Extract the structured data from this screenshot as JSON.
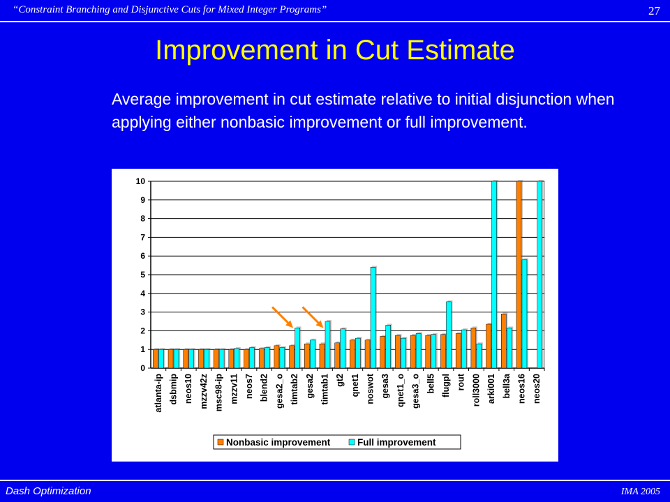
{
  "header": {
    "title": "“Constraint Branching and Disjunctive Cuts for Mixed Integer Programs”",
    "page_number": "27"
  },
  "slide": {
    "title": "Improvement in Cut Estimate",
    "subtitle": "Average improvement in cut estimate relative to initial disjunction when applying either nonbasic improvement or full improvement."
  },
  "footer": {
    "left": "Dash Optimization",
    "right": "IMA 2005"
  },
  "colors": {
    "background": "#0000ee",
    "title": "#ffff00",
    "nonbasic": "#ff8000",
    "full": "#00ffff",
    "arrow": "#ff8000"
  },
  "chart_data": {
    "type": "bar",
    "categories": [
      "atlanta-ip",
      "dsbmip",
      "neos10",
      "mzzv42z",
      "msc98-ip",
      "mzzv11",
      "neos7",
      "blend2",
      "gesa2_o",
      "timtab2",
      "gesa2",
      "timtab1",
      "gt2",
      "qnet1",
      "noswot",
      "gesa3",
      "qnet1_o",
      "gesa3_o",
      "bell5",
      "flugpl",
      "rout",
      "roll3000",
      "arki001",
      "bell3a",
      "neos16",
      "neos20"
    ],
    "series": [
      {
        "name": "Nonbasic improvement",
        "color": "#ff8000",
        "values": [
          1.0,
          1.0,
          1.0,
          1.0,
          1.0,
          1.0,
          1.0,
          1.05,
          1.2,
          1.2,
          1.3,
          1.3,
          1.35,
          1.5,
          1.5,
          1.7,
          1.75,
          1.75,
          1.75,
          1.8,
          1.85,
          2.15,
          2.35,
          2.9,
          10,
          0
        ]
      },
      {
        "name": "Full improvement",
        "color": "#00ffff",
        "values": [
          1.0,
          1.0,
          1.0,
          1.0,
          1.0,
          1.05,
          1.1,
          1.1,
          1.1,
          2.15,
          1.5,
          2.5,
          2.1,
          1.6,
          5.4,
          2.3,
          1.6,
          1.85,
          1.8,
          3.55,
          2.05,
          1.3,
          10,
          2.15,
          5.8,
          10
        ]
      }
    ],
    "ylim": [
      0,
      10
    ],
    "yticks": [
      "0",
      "1",
      "2",
      "3",
      "4",
      "5",
      "6",
      "7",
      "8",
      "9",
      "10"
    ],
    "grid": true,
    "legend_position": "bottom",
    "annotations": [
      {
        "type": "arrow",
        "target": "timtab2"
      },
      {
        "type": "arrow",
        "target": "timtab1"
      }
    ]
  }
}
